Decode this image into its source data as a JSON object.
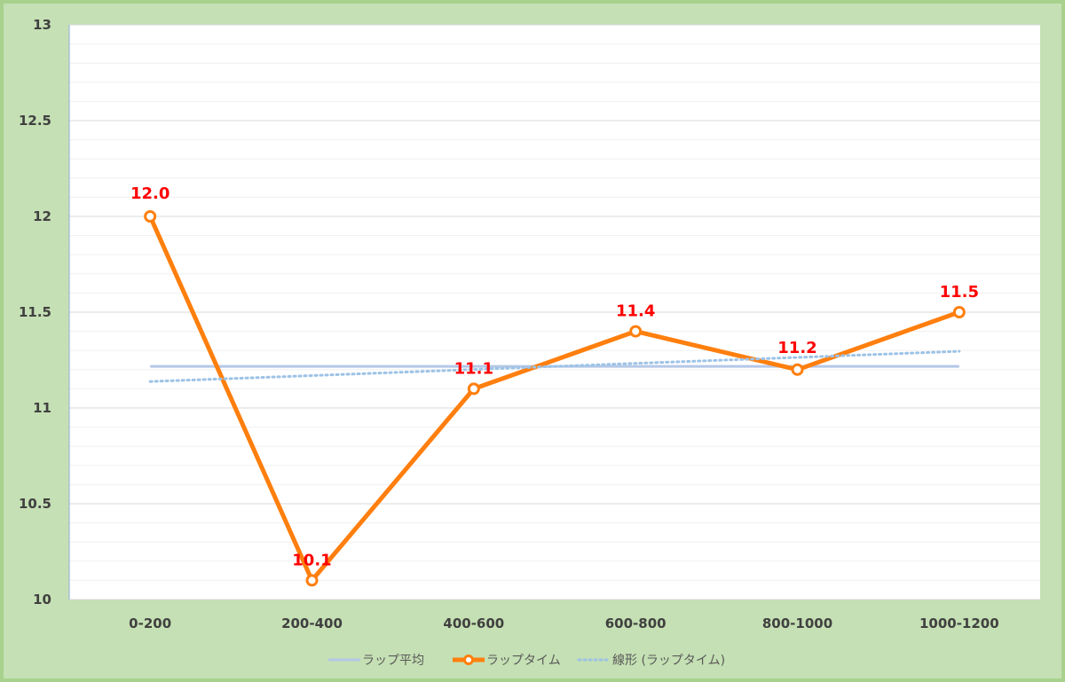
{
  "chart_data": {
    "type": "line",
    "categories": [
      "0-200",
      "200-400",
      "400-600",
      "600-800",
      "800-1000",
      "1000-1200"
    ],
    "series": [
      {
        "name": "ラップ平均",
        "values": [
          11.217,
          11.217,
          11.217,
          11.217,
          11.217,
          11.217
        ],
        "color": "#b4c7e7",
        "style": "solid-thin"
      },
      {
        "name": "ラップタイム",
        "values": [
          12.0,
          10.1,
          11.1,
          11.4,
          11.2,
          11.5
        ],
        "color": "#ff7f0e",
        "style": "solid-markers",
        "data_labels": [
          "12.0",
          "10.1",
          "11.1",
          "11.4",
          "11.2",
          "11.5"
        ],
        "label_color": "#ff0000"
      },
      {
        "name": "線形 (ラップタイム)",
        "values": [
          11.138,
          11.169,
          11.201,
          11.233,
          11.264,
          11.296
        ],
        "color": "#9dc3e6",
        "style": "dotted"
      }
    ],
    "yticks": [
      "10",
      "10.5",
      "11",
      "11.5",
      "12",
      "12.5",
      "13"
    ],
    "ylim": [
      10,
      13
    ],
    "grid": true,
    "legend_position": "bottom",
    "title": "",
    "xlabel": "",
    "ylabel": ""
  }
}
